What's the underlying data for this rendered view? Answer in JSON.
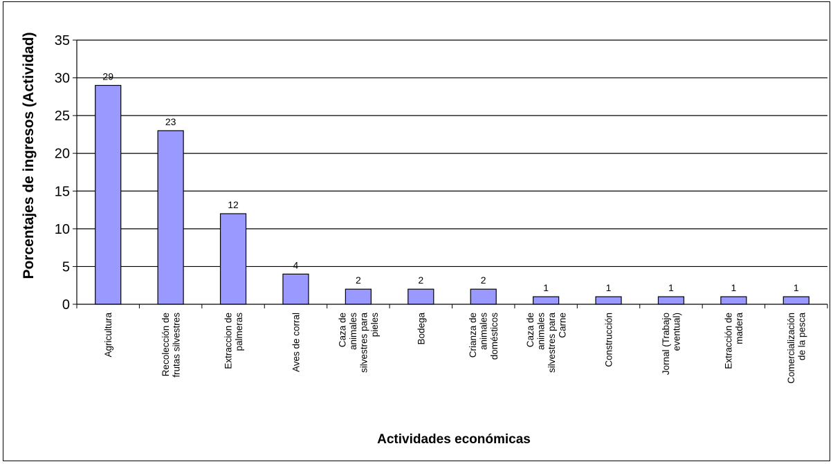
{
  "chart_data": {
    "type": "bar",
    "categories": [
      "Agricultura",
      "Recolección de frutas silvestres",
      "Extraccion de palmeras",
      "Aves de corral",
      "Caza de animales silvestres para pieles",
      "Bodega",
      "Crianza de animales domésticos",
      "Caza de animales silvestres para Carne",
      "Construcción",
      "Jornal (Trabajo eventual)",
      "Extracción de madera",
      "Comercialización de la pesca"
    ],
    "category_lines": [
      [
        "Agricultura"
      ],
      [
        "Recolección de",
        "frutas silvestres"
      ],
      [
        "Extraccion de",
        "palmeras"
      ],
      [
        "Aves de corral"
      ],
      [
        "Caza de",
        "animales",
        "silvestres para",
        "pieles"
      ],
      [
        "Bodega"
      ],
      [
        "Crianza de",
        "animales",
        "domésticos"
      ],
      [
        "Caza de",
        "animales",
        "silvestres para",
        "Carne"
      ],
      [
        "Construcción"
      ],
      [
        "Jornal (Trabajo",
        "eventual)"
      ],
      [
        "Extracción de",
        "madera"
      ],
      [
        "Comercialización",
        "de la pesca"
      ]
    ],
    "values": [
      29,
      23,
      12,
      4,
      2,
      2,
      2,
      1,
      1,
      1,
      1,
      1
    ],
    "data_labels": [
      "29",
      "23",
      "12",
      "4",
      "2",
      "2",
      "2",
      "1",
      "1",
      "1",
      "1",
      "1"
    ],
    "title": "",
    "xlabel": "Actividades económicas",
    "ylabel": "Porcentajes de ingresos (Actividad)",
    "ylim": [
      0,
      35
    ],
    "yticks": [
      0,
      5,
      10,
      15,
      20,
      25,
      30,
      35
    ],
    "grid": true,
    "legend": "none",
    "colors": {
      "bar_fill": "#9999ff",
      "bar_stroke": "#000000",
      "grid": "#000000"
    }
  }
}
